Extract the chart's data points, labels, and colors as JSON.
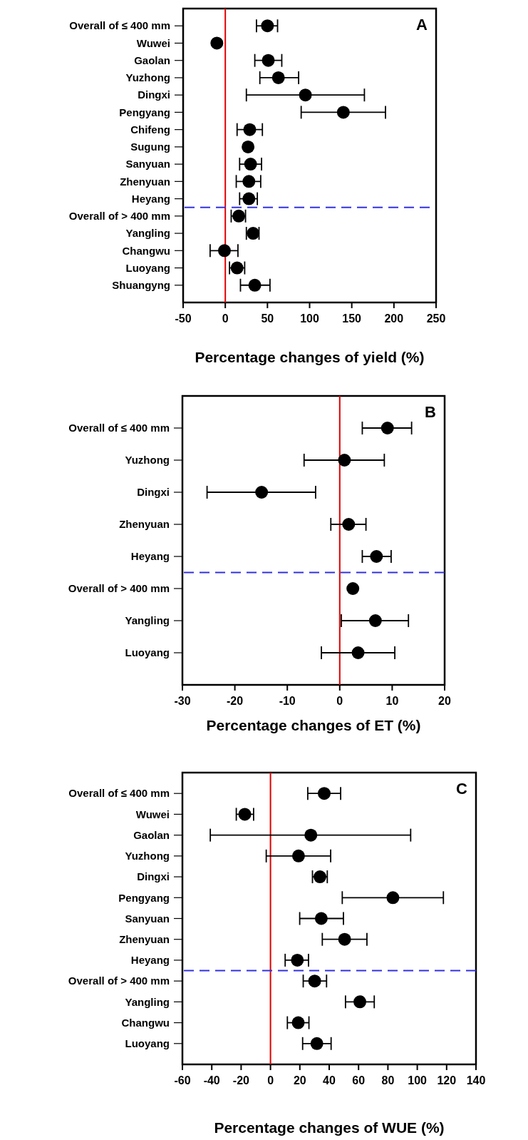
{
  "chart_data": [
    {
      "type": "scatter",
      "orientation": "horizontal",
      "marker": "circle",
      "color": "#000000",
      "xlabel": "Percentage changes of yield (%)",
      "annotations": [
        "A"
      ],
      "categories": [
        "Overall of ≤ 400 mm",
        "Wuwei",
        "Gaolan",
        "Yuzhong",
        "Dingxi",
        "Pengyang",
        "Chifeng",
        "Sugung",
        "Sanyuan",
        "Zhenyuan",
        "Heyang",
        "Overall of > 400 mm",
        "Yangling",
        "Changwu",
        "Luoyang",
        "Shuangyng"
      ],
      "values": [
        50,
        -10,
        51,
        63,
        95,
        140,
        29,
        27,
        30,
        28,
        28,
        16,
        33,
        -1,
        14,
        35
      ],
      "errors": [
        [
          37,
          62
        ],
        null,
        [
          35,
          67
        ],
        [
          41,
          87
        ],
        [
          25,
          165
        ],
        [
          90,
          190
        ],
        [
          14,
          44
        ],
        null,
        [
          17,
          43
        ],
        [
          13,
          42
        ],
        [
          17,
          38
        ],
        [
          7,
          24
        ],
        [
          25,
          40
        ],
        [
          -18,
          15
        ],
        [
          5,
          23
        ],
        [
          18,
          53
        ]
      ],
      "xlim": [
        -50,
        250
      ],
      "xticks": [
        -50,
        0,
        50,
        100,
        150,
        200,
        250
      ],
      "ref_lines": [
        {
          "axis": "x",
          "value": 0,
          "color": "#e00000",
          "line_style": "solid"
        }
      ]
    },
    {
      "type": "scatter",
      "orientation": "horizontal",
      "marker": "circle",
      "color": "#000000",
      "xlabel": "Percentage changes of ET (%)",
      "annotations": [
        "B"
      ],
      "categories": [
        "Overall of ≤ 400 mm",
        "Yuzhong",
        "Dingxi",
        "Zhenyuan",
        "Heyang",
        "Overall of > 400 mm",
        "Yangling",
        "Luoyang"
      ],
      "values": [
        9.1,
        0.9,
        -14.9,
        1.7,
        7.0,
        2.5,
        6.8,
        3.5
      ],
      "errors": [
        [
          4.3,
          13.7
        ],
        [
          -6.8,
          8.5
        ],
        [
          -25.3,
          -4.6
        ],
        [
          -1.7,
          5.0
        ],
        [
          4.3,
          9.8
        ],
        null,
        [
          0.3,
          13.1
        ],
        [
          -3.5,
          10.5
        ]
      ],
      "xlim": [
        -30,
        20
      ],
      "xticks": [
        -30,
        -20,
        -10,
        0,
        10,
        20
      ],
      "ref_lines": [
        {
          "axis": "x",
          "value": 0,
          "color": "#e00000",
          "line_style": "solid"
        }
      ]
    },
    {
      "type": "scatter",
      "orientation": "horizontal",
      "marker": "circle",
      "color": "#000000",
      "xlabel": "Percentage changes of WUE (%)",
      "annotations": [
        "C"
      ],
      "categories": [
        "Overall of ≤ 400 mm",
        "Wuwei",
        "Gaolan",
        "Yuzhong",
        "Dingxi",
        "Pengyang",
        "Sanyuan",
        "Zhenyuan",
        "Heyang",
        "Overall of > 400 mm",
        "Yangling",
        "Changwu",
        "Luoyang"
      ],
      "values": [
        36.6,
        -17.5,
        27.5,
        19.1,
        33.7,
        83.4,
        34.6,
        50.5,
        18.3,
        30.1,
        60.9,
        18.9,
        31.6
      ],
      "errors": [
        [
          25.4,
          47.8
        ],
        [
          -23.3,
          -11.5
        ],
        [
          -41,
          95.5
        ],
        [
          -2.9,
          41
        ],
        [
          28.6,
          38.7
        ],
        [
          48.9,
          117.8
        ],
        [
          19.9,
          49.7
        ],
        [
          35.3,
          65.7
        ],
        [
          10,
          25.9
        ],
        [
          22.3,
          38.2
        ],
        [
          51.1,
          70.7
        ],
        [
          11.5,
          26.2
        ],
        [
          21.9,
          41.3
        ]
      ],
      "xlim": [
        -60,
        140
      ],
      "xticks": [
        -60,
        -40,
        -20,
        0,
        20,
        40,
        60,
        80,
        100,
        120,
        140
      ],
      "ref_lines": [
        {
          "axis": "x",
          "value": 0,
          "color": "#e00000",
          "line_style": "solid"
        }
      ]
    }
  ]
}
